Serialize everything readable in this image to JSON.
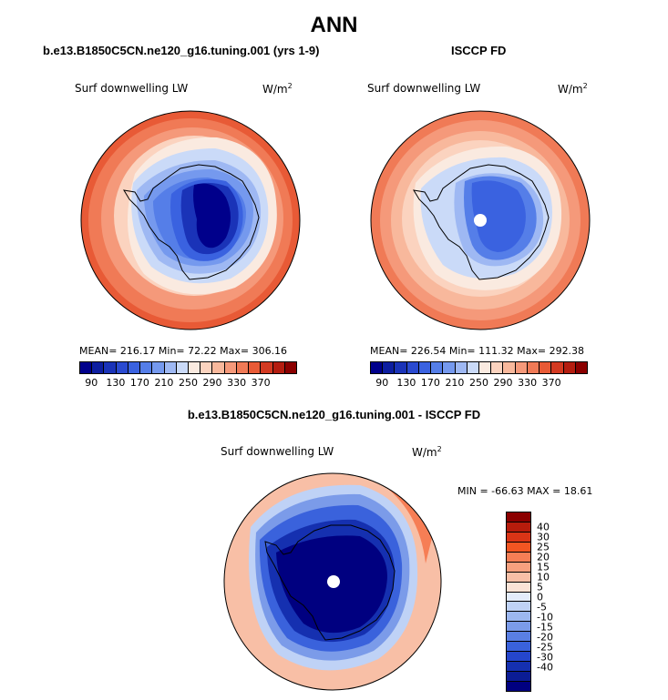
{
  "page": {
    "title": "ANN",
    "diff_title": "b.e13.B1850C5CN.ne120_g16.tuning.001 - ISCCP FD"
  },
  "panels": [
    {
      "case_title": "b.e13.B1850C5CN.ne120_g16.tuning.001 (yrs 1-9)",
      "variable": "Surf downwelling LW",
      "units": "W/m",
      "units_sup": "2",
      "stats": "MEAN= 216.17   Min=  72.22   Max= 306.16"
    },
    {
      "case_title": "ISCCP FD",
      "variable": "Surf downwelling LW",
      "units": "W/m",
      "units_sup": "2",
      "stats": "MEAN= 226.54   Min= 111.32   Max= 292.38"
    }
  ],
  "abs_colorbar": {
    "colors": [
      "#00008b",
      "#0d1ea0",
      "#1a33b8",
      "#2a4ad0",
      "#3a62e0",
      "#557ee8",
      "#7599ee",
      "#9eb8f3",
      "#cadaf8",
      "#faeae0",
      "#fbd3bf",
      "#f8b89c",
      "#f5997a",
      "#f07a56",
      "#e85a36",
      "#d33a22",
      "#b41d10",
      "#8b0000"
    ],
    "labels": [
      "90",
      "130",
      "170",
      "210",
      "250",
      "290",
      "330",
      "370"
    ]
  },
  "diff_panel": {
    "variable": "Surf downwelling LW",
    "units": "W/m",
    "units_sup": "2",
    "stats": "MIN = -66.63 MAX =  18.61"
  },
  "diff_colorbar": {
    "colors": [
      "#8b0000",
      "#b71c0c",
      "#da3416",
      "#f25522",
      "#f67e55",
      "#f7a07e",
      "#f8bfa6",
      "#fbe3d6",
      "#e3ecfb",
      "#bfd2f6",
      "#9cb7f0",
      "#7b9be9",
      "#5a7fe3",
      "#3a62dc",
      "#2546cc",
      "#1530b0",
      "#0b1c95",
      "#000080"
    ],
    "labels": [
      "40",
      "30",
      "25",
      "20",
      "15",
      "10",
      "5",
      "0",
      "-5",
      "-10",
      "-15",
      "-20",
      "-25",
      "-30",
      "-40"
    ]
  }
}
